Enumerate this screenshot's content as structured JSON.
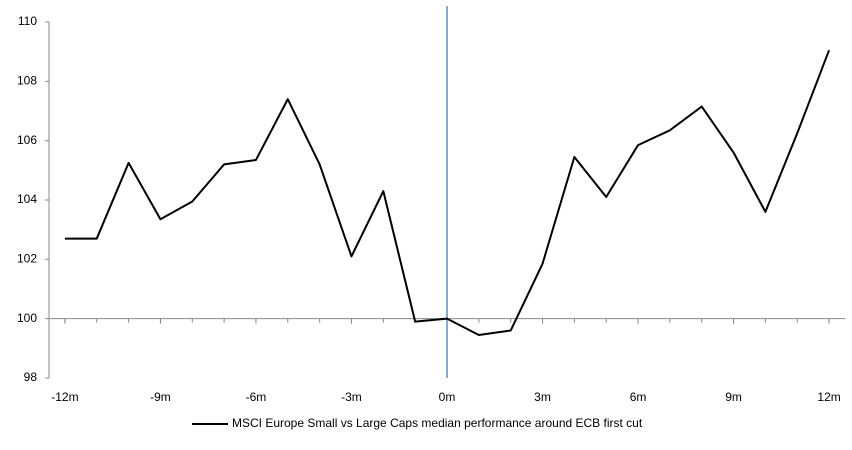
{
  "chart_data": {
    "type": "line",
    "x": [
      -12,
      -11,
      -10,
      -9,
      -8,
      -7,
      -6,
      -5,
      -4,
      -3,
      -2,
      -1,
      0,
      1,
      2,
      3,
      4,
      5,
      6,
      7,
      8,
      9,
      10,
      11,
      12
    ],
    "series": [
      {
        "name": "MSCI Europe Small vs Large Caps median performance around ECB first cut",
        "color": "#000000",
        "values": [
          102.7,
          102.7,
          105.25,
          103.35,
          103.95,
          105.2,
          105.35,
          107.4,
          105.2,
          102.1,
          104.3,
          99.9,
          100.0,
          99.45,
          99.6,
          101.85,
          105.45,
          104.1,
          105.85,
          106.35,
          107.15,
          105.6,
          103.6,
          106.25,
          109.05
        ]
      }
    ],
    "xlim": [
      -12.5,
      12.5
    ],
    "xticks": [
      {
        "value": -12,
        "label": "-12m"
      },
      {
        "value": -9,
        "label": "-9m"
      },
      {
        "value": -6,
        "label": "-6m"
      },
      {
        "value": -3,
        "label": "-3m"
      },
      {
        "value": 0,
        "label": "0m"
      },
      {
        "value": 3,
        "label": "3m"
      },
      {
        "value": 6,
        "label": "6m"
      },
      {
        "value": 9,
        "label": "9m"
      },
      {
        "value": 12,
        "label": "12m"
      }
    ],
    "ylim": [
      98,
      110
    ],
    "yticks": [
      98,
      100,
      102,
      104,
      106,
      108,
      110
    ],
    "xaxis_crosses": 100,
    "vline": {
      "value": 0,
      "color": "#5b8fc7"
    },
    "legend": "bottom"
  }
}
